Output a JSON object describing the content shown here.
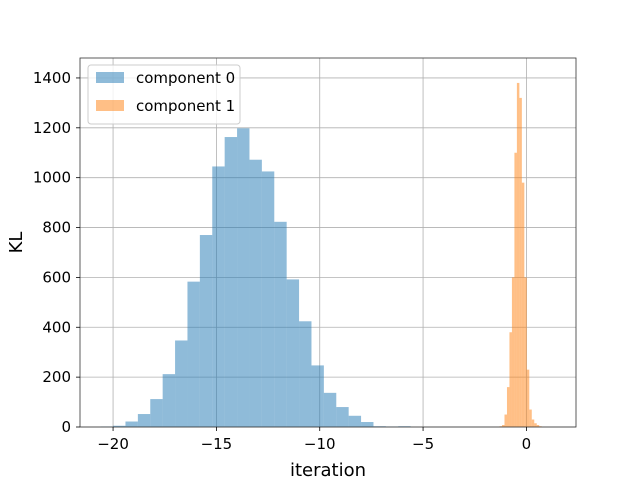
{
  "chart_data": {
    "type": "bar",
    "xlabel": "iteration",
    "ylabel": "KL",
    "xlim": [
      -21.6,
      2.4
    ],
    "ylim": [
      0,
      1480
    ],
    "xticks": [
      -20,
      -15,
      -10,
      -5,
      0
    ],
    "xtick_labels": [
      "−20",
      "−15",
      "−10",
      "−5",
      "0"
    ],
    "yticks": [
      0,
      200,
      400,
      600,
      800,
      1000,
      1200,
      1400
    ],
    "ytick_labels": [
      "0",
      "200",
      "400",
      "600",
      "800",
      "1000",
      "1200",
      "1400"
    ],
    "grid": true,
    "legend_position": "top-left",
    "series": [
      {
        "name": "component 0",
        "color": "#1f77b4",
        "alpha": 0.5,
        "bins": [
          [
            -20.6,
            -20.0,
            2
          ],
          [
            -20.0,
            -19.4,
            5
          ],
          [
            -19.4,
            -18.8,
            22
          ],
          [
            -18.8,
            -18.2,
            52
          ],
          [
            -18.2,
            -17.6,
            112
          ],
          [
            -17.6,
            -17.0,
            212
          ],
          [
            -17.0,
            -16.4,
            347
          ],
          [
            -16.4,
            -15.8,
            583
          ],
          [
            -15.8,
            -15.2,
            770
          ],
          [
            -15.2,
            -14.6,
            1045
          ],
          [
            -14.6,
            -14.0,
            1163
          ],
          [
            -14.0,
            -13.4,
            1198
          ],
          [
            -13.4,
            -12.8,
            1072
          ],
          [
            -12.8,
            -12.2,
            1025
          ],
          [
            -12.2,
            -11.6,
            823
          ],
          [
            -11.6,
            -11.0,
            592
          ],
          [
            -11.0,
            -10.4,
            424
          ],
          [
            -10.4,
            -9.8,
            247
          ],
          [
            -9.8,
            -9.2,
            137
          ],
          [
            -9.2,
            -8.6,
            80
          ],
          [
            -8.6,
            -8.0,
            45
          ],
          [
            -8.0,
            -7.4,
            20
          ],
          [
            -7.4,
            -6.8,
            3
          ],
          [
            -6.8,
            -6.2,
            2
          ],
          [
            -6.2,
            -5.6,
            3
          ]
        ]
      },
      {
        "name": "component 1",
        "color": "#ff7f0e",
        "alpha": 0.5,
        "bins": [
          [
            -1.3,
            -1.18,
            3
          ],
          [
            -1.18,
            -1.06,
            8
          ],
          [
            -1.06,
            -0.94,
            50
          ],
          [
            -0.94,
            -0.82,
            160
          ],
          [
            -0.82,
            -0.7,
            380
          ],
          [
            -0.7,
            -0.58,
            600
          ],
          [
            -0.58,
            -0.46,
            1100
          ],
          [
            -0.46,
            -0.34,
            1380
          ],
          [
            -0.34,
            -0.22,
            1320
          ],
          [
            -0.22,
            -0.1,
            980
          ],
          [
            -0.1,
            0.02,
            600
          ],
          [
            0.02,
            0.14,
            230
          ],
          [
            0.14,
            0.26,
            70
          ],
          [
            0.26,
            0.38,
            30
          ],
          [
            0.38,
            0.5,
            15
          ],
          [
            0.5,
            0.62,
            8
          ],
          [
            0.62,
            0.74,
            3
          ]
        ]
      }
    ]
  }
}
